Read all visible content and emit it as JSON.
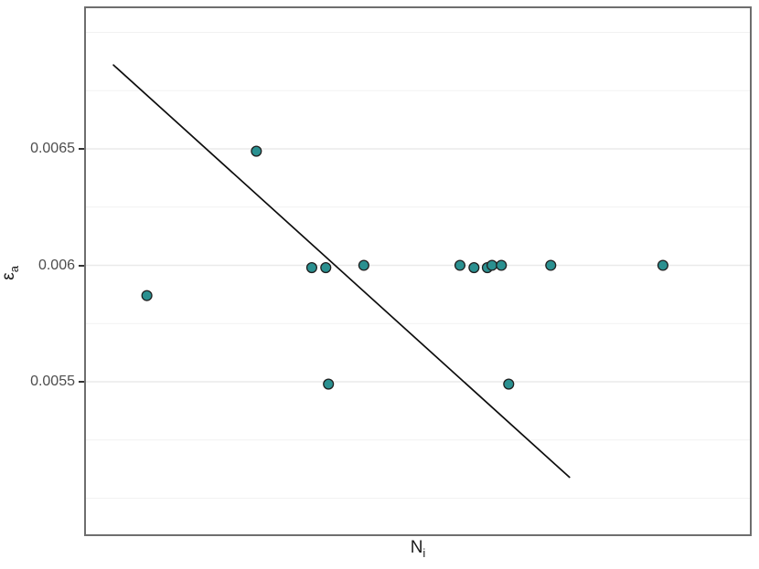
{
  "figure": {
    "background": "#ffffff",
    "y_axis": {
      "title_main": "ε",
      "title_sub": "a",
      "major_ticks": [
        {
          "value": 0.0065,
          "label": "0.0065"
        },
        {
          "value": 0.006,
          "label": "0.006"
        },
        {
          "value": 0.0055,
          "label": "0.0055"
        }
      ],
      "minor_gridline_values": [
        0.007,
        0.00675,
        0.00625,
        0.00575,
        0.00525,
        0.005
      ]
    },
    "x_axis": {
      "title_main": "N",
      "title_sub": "i",
      "tick_labels_visible": false
    },
    "colors": {
      "point_fill": "#2a9090",
      "point_stroke": "#1f1f1f",
      "trend_line": "#0d0d0d",
      "grid_major": "#eaeaea",
      "grid_minor": "#f2f2f2",
      "panel_border": "#6e6e6e",
      "tick_label": "#4d4d4d",
      "axis_title": "#1a1a1a"
    }
  },
  "chart_data": {
    "type": "scatter",
    "title": "",
    "xlabel": "N_i",
    "ylabel": "epsilon_a",
    "x_tick_labels_shown": false,
    "y_tick_values": [
      0.0055,
      0.006,
      0.0065
    ],
    "grid": "major and minor horizontal gridlines only",
    "legend": "none",
    "points": [
      {
        "x_frac": 0.094,
        "y": 0.00587
      },
      {
        "x_frac": 0.258,
        "y": 0.00649
      },
      {
        "x_frac": 0.341,
        "y": 0.00599
      },
      {
        "x_frac": 0.362,
        "y": 0.00599
      },
      {
        "x_frac": 0.366,
        "y": 0.00549
      },
      {
        "x_frac": 0.419,
        "y": 0.006
      },
      {
        "x_frac": 0.563,
        "y": 0.006
      },
      {
        "x_frac": 0.584,
        "y": 0.00599
      },
      {
        "x_frac": 0.604,
        "y": 0.00599
      },
      {
        "x_frac": 0.611,
        "y": 0.006
      },
      {
        "x_frac": 0.625,
        "y": 0.006
      },
      {
        "x_frac": 0.636,
        "y": 0.00549
      },
      {
        "x_frac": 0.699,
        "y": 0.006
      },
      {
        "x_frac": 0.867,
        "y": 0.006
      }
    ],
    "trend_line": {
      "x1_frac": 0.044,
      "y1": 0.00686,
      "x2_frac": 0.727,
      "y2": 0.00509
    }
  }
}
